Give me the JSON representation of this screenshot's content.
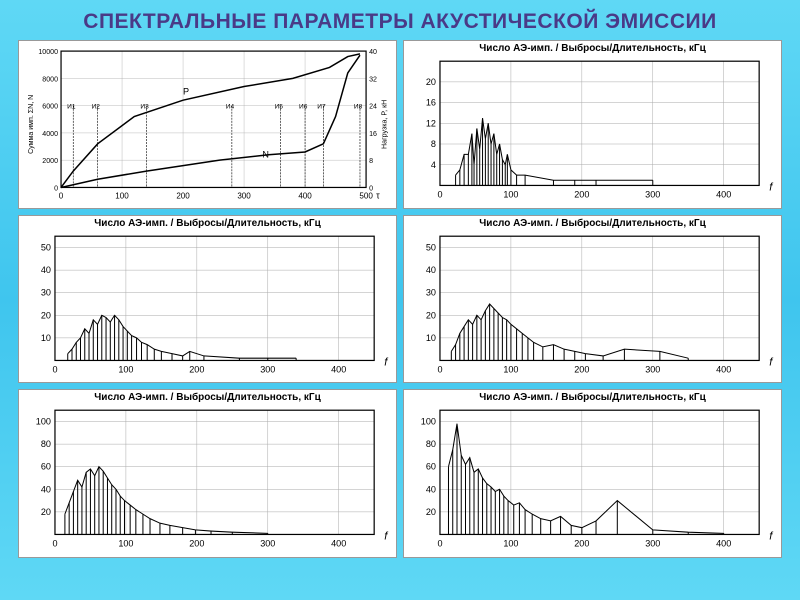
{
  "title": "СПЕКТРАЛЬНЫЕ ПАРАМЕТРЫ АКУСТИЧЕСКОЙ ЭМИССИИ",
  "background_gradient": [
    "#5fd8f5",
    "#3fc5ee",
    "#5fd8f5"
  ],
  "charts": {
    "loading_curve": {
      "type": "line",
      "ylabel_left": "Сумма имп. ΣN, N",
      "ylabel_right": "Нагрузка, P, кН",
      "xlabel": "τ",
      "xlim": [
        0,
        500
      ],
      "ylim_left": [
        0,
        10000
      ],
      "ylim_right": [
        0,
        40
      ],
      "xtick_step": 100,
      "ytick_step_left": 2000,
      "ytick_step_right": 8,
      "series_P": {
        "label": "P",
        "color": "#000000",
        "width": 1.5,
        "points": [
          [
            0,
            0
          ],
          [
            20,
            1200
          ],
          [
            60,
            3200
          ],
          [
            120,
            5200
          ],
          [
            200,
            6400
          ],
          [
            300,
            7400
          ],
          [
            380,
            8000
          ],
          [
            440,
            8800
          ],
          [
            470,
            9600
          ],
          [
            490,
            9800
          ]
        ]
      },
      "series_N": {
        "label": "N",
        "color": "#000000",
        "width": 1.5,
        "points": [
          [
            0,
            0
          ],
          [
            60,
            600
          ],
          [
            140,
            1200
          ],
          [
            260,
            2000
          ],
          [
            340,
            2400
          ],
          [
            400,
            2600
          ],
          [
            430,
            3200
          ],
          [
            450,
            5200
          ],
          [
            470,
            8400
          ],
          [
            490,
            9700
          ]
        ]
      },
      "stage_markers": [
        "И1",
        "И2",
        "И3",
        "И4",
        "И5",
        "И6",
        "И7",
        "И8"
      ],
      "stage_x": [
        20,
        60,
        140,
        280,
        360,
        400,
        430,
        490
      ],
      "line_color": "#000000",
      "grid_color": "#aaaaaa",
      "text_color": "#000000",
      "fontsize_label": 8,
      "fontsize_tick": 7
    },
    "spectrum_a": {
      "type": "spectrum_bars",
      "title": "Число АЭ-имп. / Выбросы/Длительность, кГц",
      "xlim": [
        0,
        450
      ],
      "ylim": [
        0,
        24
      ],
      "xtick_step": 100,
      "ytick_step": 4,
      "xticks": [
        0,
        100,
        200,
        300,
        400
      ],
      "yticks": [
        4,
        8,
        12,
        16,
        20
      ],
      "xlabel": "f",
      "line_color": "#000000",
      "grid_color": "#aaaaaa",
      "line_width": 1,
      "bars": [
        [
          22,
          2
        ],
        [
          28,
          3
        ],
        [
          34,
          6
        ],
        [
          40,
          6
        ],
        [
          45,
          10
        ],
        [
          48,
          4
        ],
        [
          52,
          11
        ],
        [
          56,
          7
        ],
        [
          60,
          13
        ],
        [
          64,
          9
        ],
        [
          68,
          12
        ],
        [
          72,
          8
        ],
        [
          76,
          10
        ],
        [
          80,
          6
        ],
        [
          84,
          8
        ],
        [
          88,
          5
        ],
        [
          92,
          4
        ],
        [
          95,
          6
        ],
        [
          100,
          3
        ],
        [
          108,
          2
        ],
        [
          120,
          2
        ],
        [
          160,
          1
        ],
        [
          190,
          1
        ],
        [
          220,
          1
        ],
        [
          300,
          1
        ]
      ]
    },
    "spectrum_b": {
      "type": "spectrum_bars",
      "title": "Число АЭ-имп. / Выбросы/Длительность, кГц",
      "xlim": [
        0,
        450
      ],
      "ylim": [
        0,
        55
      ],
      "xtick_step": 100,
      "ytick_step": 10,
      "xticks": [
        0,
        100,
        200,
        300,
        400
      ],
      "yticks": [
        10,
        20,
        30,
        40,
        50
      ],
      "xlabel": "f",
      "line_color": "#000000",
      "grid_color": "#aaaaaa",
      "line_width": 1,
      "bars": [
        [
          18,
          3
        ],
        [
          24,
          5
        ],
        [
          30,
          8
        ],
        [
          36,
          10
        ],
        [
          42,
          14
        ],
        [
          48,
          12
        ],
        [
          54,
          18
        ],
        [
          60,
          16
        ],
        [
          66,
          20
        ],
        [
          72,
          19
        ],
        [
          78,
          17
        ],
        [
          84,
          20
        ],
        [
          90,
          18
        ],
        [
          96,
          15
        ],
        [
          102,
          13
        ],
        [
          108,
          11
        ],
        [
          115,
          10
        ],
        [
          122,
          8
        ],
        [
          130,
          7
        ],
        [
          140,
          5
        ],
        [
          150,
          4
        ],
        [
          165,
          3
        ],
        [
          180,
          2
        ],
        [
          190,
          4
        ],
        [
          210,
          2
        ],
        [
          260,
          1
        ],
        [
          300,
          1
        ],
        [
          340,
          1
        ]
      ]
    },
    "spectrum_c": {
      "type": "spectrum_bars",
      "title": "Число АЭ-имп. / Выбросы/Длительность, кГц",
      "xlim": [
        0,
        450
      ],
      "ylim": [
        0,
        55
      ],
      "xtick_step": 100,
      "ytick_step": 10,
      "xticks": [
        0,
        100,
        200,
        300,
        400
      ],
      "yticks": [
        10,
        20,
        30,
        40,
        50
      ],
      "xlabel": "f",
      "line_color": "#000000",
      "grid_color": "#aaaaaa",
      "line_width": 1,
      "bars": [
        [
          16,
          4
        ],
        [
          22,
          7
        ],
        [
          28,
          12
        ],
        [
          34,
          15
        ],
        [
          40,
          18
        ],
        [
          46,
          16
        ],
        [
          52,
          20
        ],
        [
          58,
          18
        ],
        [
          64,
          22
        ],
        [
          70,
          25
        ],
        [
          76,
          23
        ],
        [
          82,
          21
        ],
        [
          88,
          19
        ],
        [
          94,
          18
        ],
        [
          100,
          16
        ],
        [
          108,
          14
        ],
        [
          116,
          12
        ],
        [
          124,
          10
        ],
        [
          132,
          8
        ],
        [
          145,
          6
        ],
        [
          160,
          7
        ],
        [
          175,
          5
        ],
        [
          190,
          4
        ],
        [
          205,
          3
        ],
        [
          230,
          2
        ],
        [
          260,
          5
        ],
        [
          310,
          4
        ],
        [
          350,
          1
        ]
      ]
    },
    "spectrum_d": {
      "type": "spectrum_bars",
      "title": "Число АЭ-имп. / Выбросы/Длительность, кГц",
      "xlim": [
        0,
        450
      ],
      "ylim": [
        0,
        110
      ],
      "xtick_step": 100,
      "ytick_step": 20,
      "xticks": [
        0,
        100,
        200,
        300,
        400
      ],
      "yticks": [
        20,
        40,
        60,
        80,
        100
      ],
      "xlabel": "f",
      "line_color": "#000000",
      "grid_color": "#aaaaaa",
      "line_width": 1,
      "bars": [
        [
          14,
          18
        ],
        [
          20,
          28
        ],
        [
          26,
          38
        ],
        [
          32,
          48
        ],
        [
          38,
          42
        ],
        [
          44,
          55
        ],
        [
          50,
          58
        ],
        [
          56,
          52
        ],
        [
          62,
          60
        ],
        [
          68,
          56
        ],
        [
          74,
          50
        ],
        [
          80,
          44
        ],
        [
          86,
          40
        ],
        [
          92,
          34
        ],
        [
          98,
          30
        ],
        [
          106,
          26
        ],
        [
          114,
          22
        ],
        [
          124,
          18
        ],
        [
          134,
          14
        ],
        [
          148,
          10
        ],
        [
          162,
          8
        ],
        [
          180,
          6
        ],
        [
          198,
          4
        ],
        [
          220,
          3
        ],
        [
          250,
          2
        ],
        [
          300,
          1
        ]
      ]
    },
    "spectrum_e": {
      "type": "spectrum_bars",
      "title": "Число АЭ-имп. / Выбросы/Длительность, кГц",
      "xlim": [
        0,
        450
      ],
      "ylim": [
        0,
        110
      ],
      "xtick_step": 100,
      "ytick_step": 20,
      "xticks": [
        0,
        100,
        200,
        300,
        400
      ],
      "yticks": [
        20,
        40,
        60,
        80,
        100
      ],
      "xlabel": "f",
      "line_color": "#000000",
      "grid_color": "#aaaaaa",
      "line_width": 1,
      "bars": [
        [
          12,
          60
        ],
        [
          18,
          75
        ],
        [
          24,
          98
        ],
        [
          30,
          70
        ],
        [
          36,
          62
        ],
        [
          42,
          68
        ],
        [
          48,
          55
        ],
        [
          54,
          58
        ],
        [
          60,
          50
        ],
        [
          66,
          45
        ],
        [
          72,
          42
        ],
        [
          78,
          38
        ],
        [
          84,
          40
        ],
        [
          90,
          34
        ],
        [
          96,
          30
        ],
        [
          104,
          26
        ],
        [
          112,
          28
        ],
        [
          120,
          22
        ],
        [
          130,
          18
        ],
        [
          142,
          14
        ],
        [
          156,
          12
        ],
        [
          170,
          16
        ],
        [
          185,
          8
        ],
        [
          200,
          6
        ],
        [
          220,
          12
        ],
        [
          250,
          30
        ],
        [
          300,
          4
        ],
        [
          350,
          2
        ],
        [
          400,
          1
        ]
      ]
    }
  }
}
